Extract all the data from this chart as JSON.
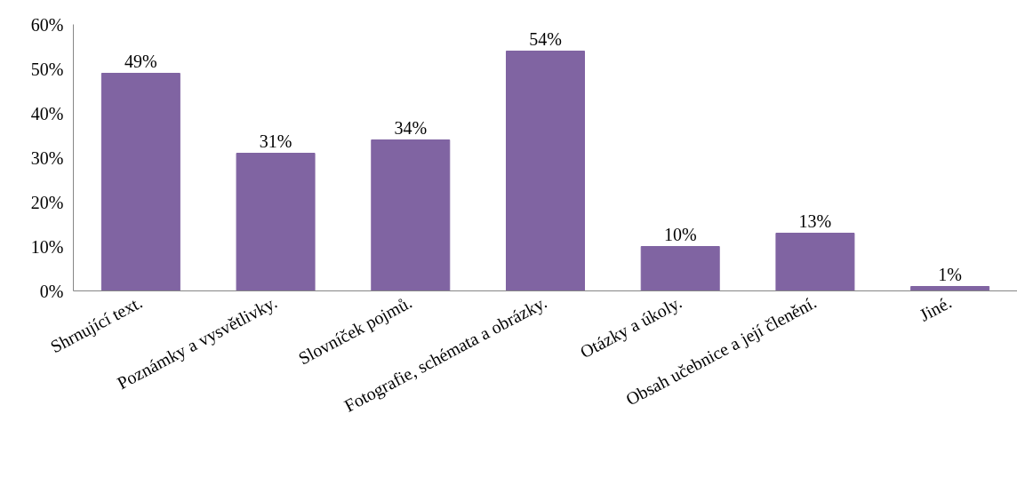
{
  "chart_data": {
    "type": "bar",
    "categories": [
      "Shrnující text.",
      "Poznámky a vysvětlivky.",
      "Slovníček pojmů.",
      "Fotografie, schémata a obrázky.",
      "Otázky a úkoly.",
      "Obsah učebnice a její členění.",
      "Jiné."
    ],
    "values": [
      49,
      31,
      34,
      54,
      10,
      13,
      1
    ],
    "value_labels": [
      "49%",
      "31%",
      "34%",
      "54%",
      "10%",
      "13%",
      "1%"
    ],
    "color": "#8064a2",
    "ylim": [
      0,
      60
    ],
    "yticks": [
      {
        "value": 0,
        "label": "0%"
      },
      {
        "value": 10,
        "label": "10%"
      },
      {
        "value": 20,
        "label": "20%"
      },
      {
        "value": 30,
        "label": "30%"
      },
      {
        "value": 40,
        "label": "40%"
      },
      {
        "value": 50,
        "label": "50%"
      },
      {
        "value": 60,
        "label": "60%"
      }
    ],
    "grid": false
  }
}
